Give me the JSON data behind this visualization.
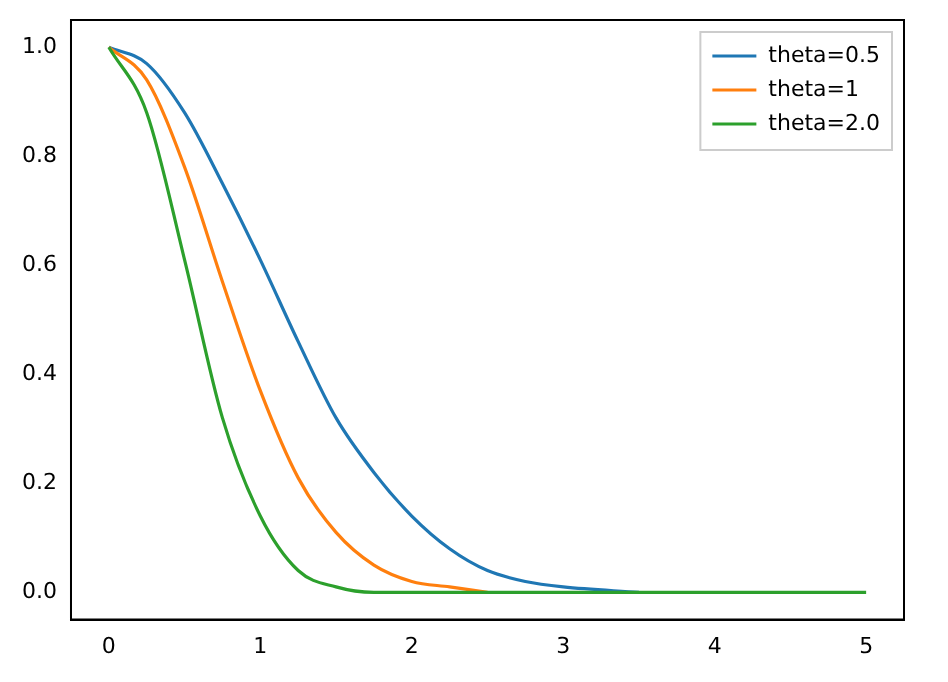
{
  "chart_data": {
    "type": "line",
    "xlim": [
      -0.25,
      5.25
    ],
    "ylim": [
      -0.05,
      1.05
    ],
    "xticks": [
      0,
      1,
      2,
      3,
      4,
      5
    ],
    "yticks": [
      {
        "value": 0,
        "label": "0.0"
      },
      {
        "value": 0.2,
        "label": "0.2"
      },
      {
        "value": 0.4,
        "label": "0.4"
      },
      {
        "value": 0.6,
        "label": "0.6"
      },
      {
        "value": 0.8,
        "label": "0.8"
      },
      {
        "value": 1,
        "label": "1.0"
      }
    ],
    "grid": false,
    "legend": "top right",
    "marker": "none",
    "line_style": "solid",
    "series": [
      {
        "name": "theta=0.5",
        "color": "#1f77b4",
        "x": [
          0,
          0.25,
          0.5,
          0.75,
          1,
          1.25,
          1.5,
          1.75,
          2,
          2.25,
          2.5,
          2.75,
          3,
          3.5
        ],
        "values": [
          1,
          0.97,
          0.88,
          0.75,
          0.61,
          0.46,
          0.32,
          0.22,
          0.14,
          0.08,
          0.04,
          0.02,
          0.01,
          0
        ]
      },
      {
        "name": "theta=1",
        "color": "#ff7f0e",
        "x": [
          0,
          0.25,
          0.5,
          0.75,
          1,
          1.25,
          1.5,
          1.75,
          2,
          2.25,
          2.5
        ],
        "values": [
          1,
          0.94,
          0.78,
          0.57,
          0.37,
          0.21,
          0.11,
          0.05,
          0.02,
          0.01,
          0
        ]
      },
      {
        "name": "theta=2.0",
        "color": "#2ca02c",
        "x": [
          0,
          0.25,
          0.5,
          0.75,
          1,
          1.25,
          1.5,
          1.75,
          2,
          3,
          4,
          5
        ],
        "values": [
          1,
          0.88,
          0.61,
          0.32,
          0.14,
          0.04,
          0.01,
          0,
          0,
          0,
          0,
          0
        ]
      }
    ]
  }
}
